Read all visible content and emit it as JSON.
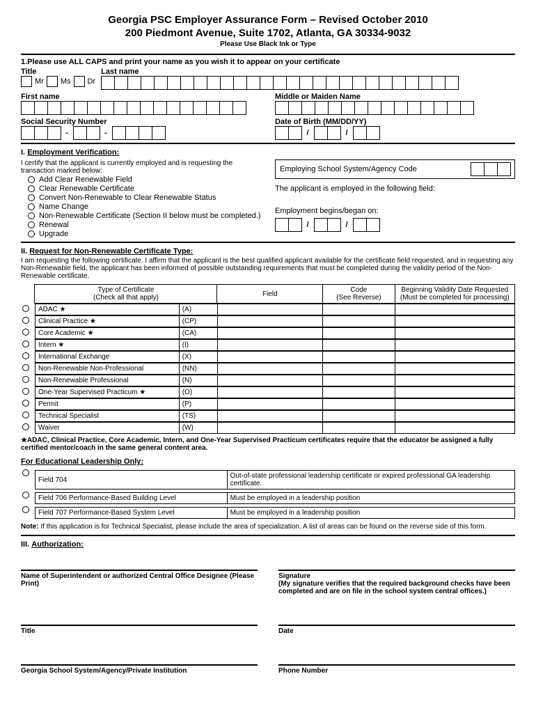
{
  "header": {
    "title": "Georgia PSC Employer Assurance Form – Revised October 2010",
    "address": "200 Piedmont Avenue, Suite 1702, Atlanta, GA 30334-9032",
    "sub": "Please Use Black Ink or Type"
  },
  "section1": {
    "instruction": "1.Please use ALL CAPS and print your name as you wish it to appear on your certificate",
    "title_label": "Title",
    "mr": "Mr",
    "ms": "Ms",
    "dr": "Dr",
    "lastname_label": "Last name",
    "firstname_label": "First name",
    "middlename_label": "Middle or Maiden Name",
    "ssn_label": "Social Security Number",
    "dob_label": "Date of Birth (MM/DD/YY)"
  },
  "sectionI": {
    "heading_num": "I.",
    "heading": "Employment Verification:",
    "certify_text": "I certify that the applicant is currently employed and is requesting the transaction marked below:",
    "options": [
      "Add Clear Renewable Field",
      "Clear Renewable Certificate",
      "Convert Non-Renewable to Clear Renewable Status",
      "Name Change",
      "Non-Renewable Certificate (Section II below must be completed.)",
      "Renewal",
      "Upgrade"
    ],
    "agency_label": "Employing School System/Agency Code",
    "employed_field": "The applicant is employed in the following field:",
    "begins_label": "Employment begins/began on:"
  },
  "sectionII": {
    "heading_num": "II.",
    "heading": "Request for Non-Renewable Certificate Type:",
    "intro": "I am requesting the following certificate. I affirm that the applicant is the best qualified applicant available for the certificate field requested, and in requesting any Non-Renewable field, the applicant has been informed of possible outstanding requirements that must be completed during the validity period of the Non-Renewable certificate.",
    "cols": {
      "type": "Type of Certificate",
      "type_sub": "(Check all that apply)",
      "field": "Field",
      "code": "Code",
      "code_sub": "(See Reverse)",
      "date": "Beginning Validity Date Requested",
      "date_sub": "(Must be completed for processing)"
    },
    "rows": [
      {
        "name": "ADAC ★",
        "code": "(A)"
      },
      {
        "name": "Clinical Practice ★",
        "code": "(CP)"
      },
      {
        "name": "Core Academic ★",
        "code": "(CA)"
      },
      {
        "name": "Intern ★",
        "code": "(I)"
      },
      {
        "name": "International Exchange",
        "code": "(X)"
      },
      {
        "name": "Non-Renewable Non-Professional",
        "code": "(NN)"
      },
      {
        "name": "Non-Renewable Professional",
        "code": "(N)"
      },
      {
        "name": "One-Year Supervised Practicum ★",
        "code": "(O)"
      },
      {
        "name": "Permit",
        "code": "(P)"
      },
      {
        "name": "Technical Specialist",
        "code": "(TS)"
      },
      {
        "name": "Waiver",
        "code": "(W)"
      }
    ],
    "footnote": "★ADAC, Clinical Practice, Core Academic, Intern, and One-Year Supervised Practicum certificates require that the educator be assigned a fully certified mentor/coach in the same general content area.",
    "leadership_heading": "For Educational Leadership Only:",
    "leadership": [
      {
        "field": "Field 704",
        "desc": "Out-of-state professional leadership certificate or expired professional GA leadership certificate."
      },
      {
        "field": "Field 706 Performance-Based Building Level",
        "desc": "Must be employed in a leadership position"
      },
      {
        "field": "Field 707 Performance-Based System Level",
        "desc": "Must be employed in a leadership position"
      }
    ],
    "note_label": "Note:",
    "note_text": "If this application is for Technical Specialist, please include the area of specialization.  A list of areas can be found on the reverse side of this form."
  },
  "sectionIII": {
    "heading_num": "III.",
    "heading": "Authorization:",
    "sig1_label": "Name of Superintendent or authorized Central Office Designee (Please Print)",
    "sig2_label": "Signature",
    "sig2_sub": "(My signature verifies that the required background checks have been completed and are on file in the school system central offices.)",
    "title_label": "Title",
    "date_label": "Date",
    "school_label": "Georgia School System/Agency/Private Institution",
    "phone_label": "Phone Number"
  }
}
